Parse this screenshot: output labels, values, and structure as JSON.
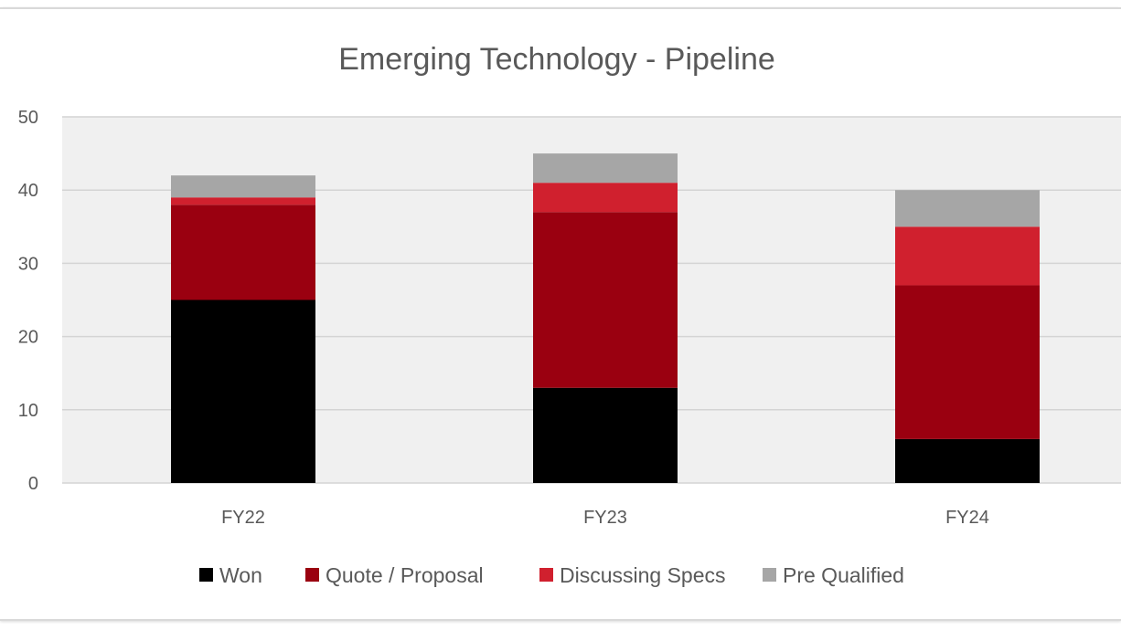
{
  "chart_data": {
    "type": "bar",
    "stacked": true,
    "title": "Emerging Technology - Pipeline",
    "xlabel": "",
    "ylabel": "",
    "categories": [
      "FY22",
      "FY23",
      "FY24"
    ],
    "ylim": [
      0,
      50
    ],
    "yticks": [
      0,
      10,
      20,
      30,
      40,
      50
    ],
    "grid": true,
    "legend_position": "bottom",
    "series": [
      {
        "name": "Won",
        "values": [
          25,
          13,
          6
        ],
        "color": "#000000"
      },
      {
        "name": "Quote / Proposal",
        "values": [
          13,
          24,
          21
        ],
        "color": "#9a0010"
      },
      {
        "name": "Discussing Specs",
        "values": [
          1,
          4,
          8
        ],
        "color": "#d0202e"
      },
      {
        "name": "Pre Qualified",
        "values": [
          3,
          4,
          5
        ],
        "color": "#a6a6a6"
      }
    ]
  }
}
